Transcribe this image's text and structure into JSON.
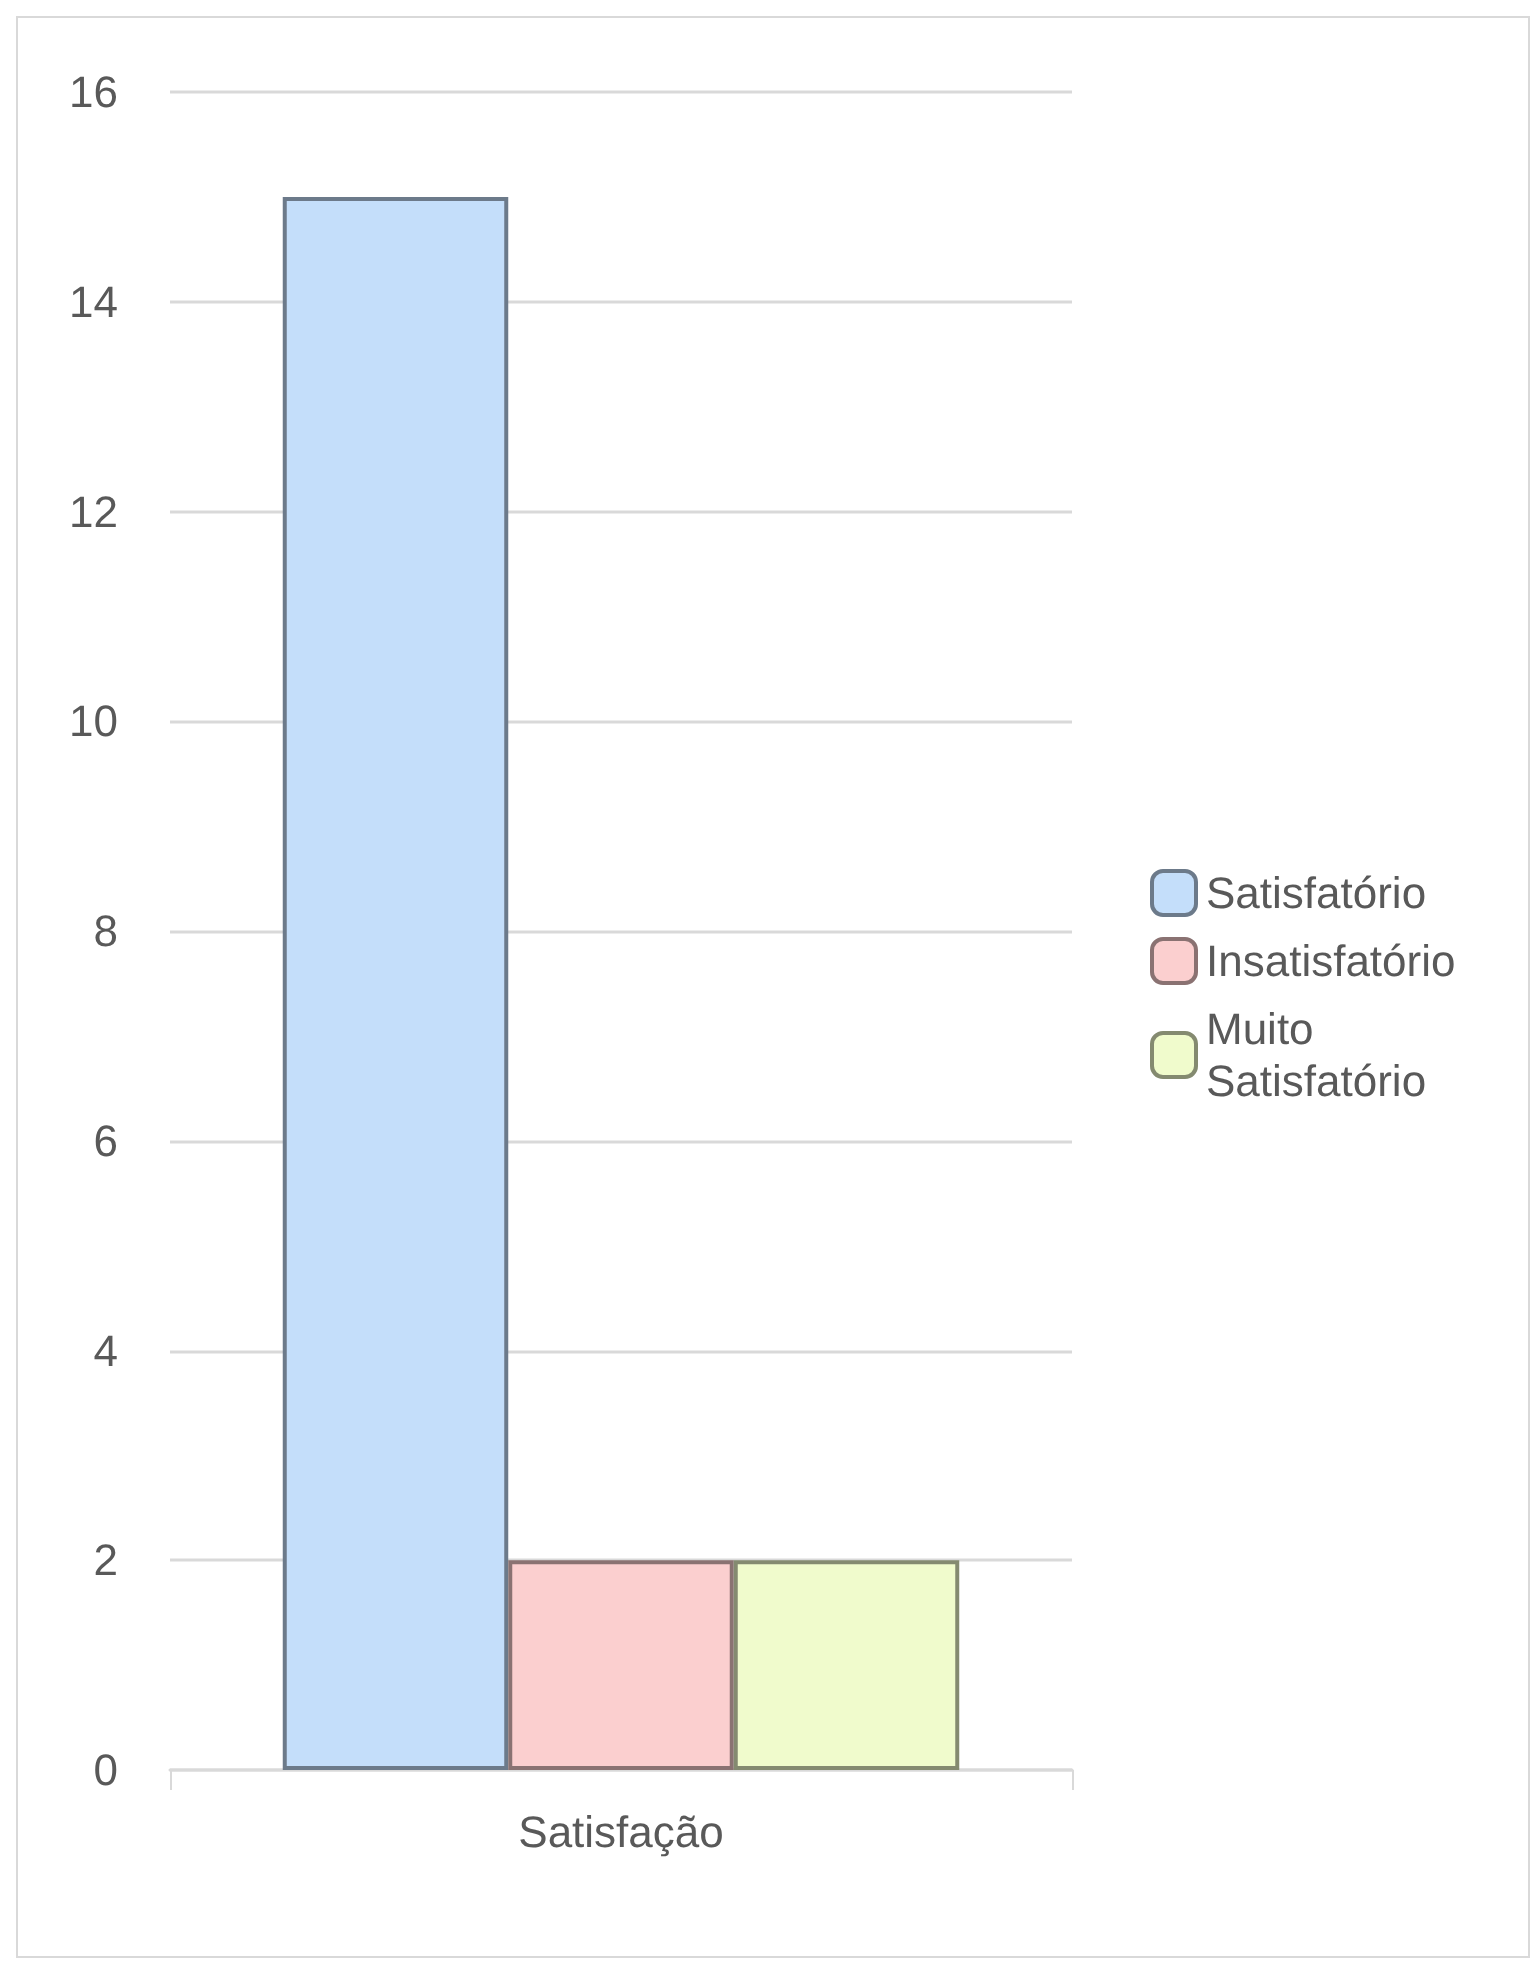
{
  "chart_data": {
    "type": "bar",
    "categories": [
      "Satisfação"
    ],
    "series": [
      {
        "name": "Satisfatório",
        "color": "#c4defa",
        "values": [
          15
        ]
      },
      {
        "name": "Insatisfatório",
        "color": "#fbcfcf",
        "values": [
          2
        ]
      },
      {
        "name": "Muito Satisfatório",
        "color": "#f0fbcc",
        "values": [
          2
        ]
      }
    ],
    "ylim": [
      0,
      16
    ],
    "yticks": [
      0,
      2,
      4,
      6,
      8,
      10,
      12,
      14,
      16
    ],
    "grid": "y",
    "legend": "right"
  }
}
